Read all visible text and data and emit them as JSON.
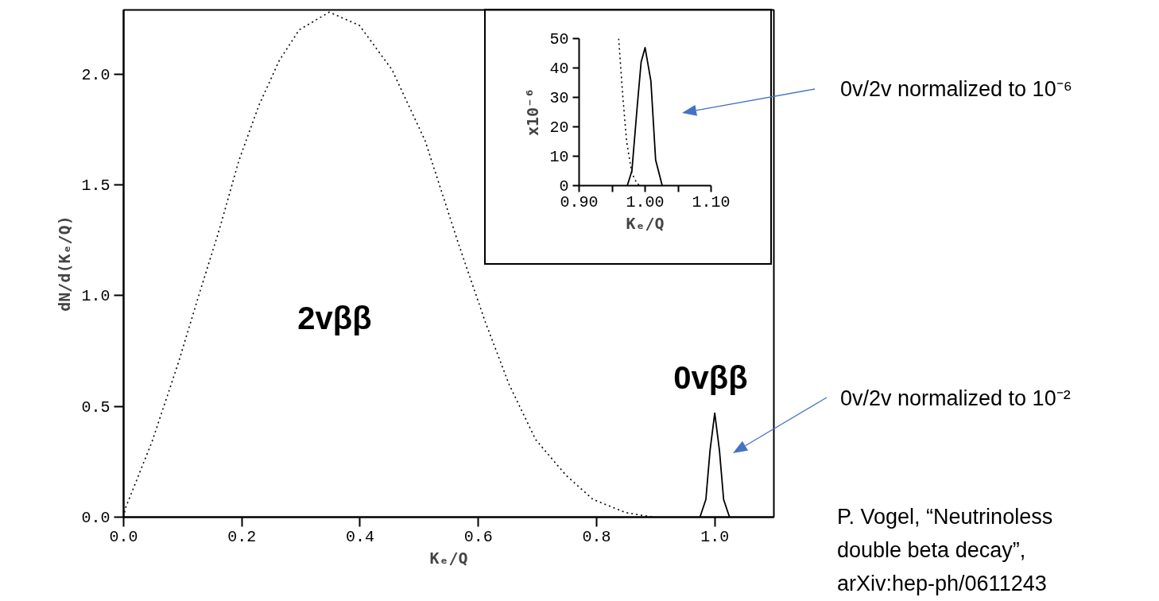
{
  "chart_data": [
    {
      "type": "line",
      "xlabel": "Kₑ/Q",
      "ylabel": "dN/d(Kₑ/Q)",
      "xlim": [
        0,
        1.1
      ],
      "ylim": [
        0,
        2.29
      ],
      "xticks": [
        {
          "value": 0,
          "label": "0.0"
        },
        {
          "value": 0.2,
          "label": "0.2"
        },
        {
          "value": 0.4,
          "label": "0.4"
        },
        {
          "value": 0.6,
          "label": "0.6"
        },
        {
          "value": 0.8,
          "label": "0.8"
        },
        {
          "value": 1.0,
          "label": "1.0"
        }
      ],
      "yticks": [
        {
          "value": 0,
          "label": "0.0"
        },
        {
          "value": 0.5,
          "label": "0.5"
        },
        {
          "value": 1.0,
          "label": "1.0"
        },
        {
          "value": 1.5,
          "label": "1.5"
        },
        {
          "value": 2.0,
          "label": "2.0"
        }
      ],
      "grid": false,
      "series": [
        {
          "color": "#000000",
          "line_style": "dotted",
          "x": [
            0,
            0.003,
            0.048,
            0.093,
            0.127,
            0.161,
            0.195,
            0.229,
            0.263,
            0.297,
            0.348,
            0.399,
            0.454,
            0.51,
            0.567,
            0.612,
            0.652,
            0.697,
            0.748,
            0.794,
            0.85,
            0.896
          ],
          "values": [
            0,
            0.04,
            0.34,
            0.7,
            1.0,
            1.29,
            1.61,
            1.86,
            2.06,
            2.2,
            2.28,
            2.22,
            2.02,
            1.7,
            1.23,
            0.88,
            0.6,
            0.35,
            0.19,
            0.08,
            0.02,
            0
          ]
        },
        {
          "color": "#000000",
          "line_style": "solid",
          "x": [
            0.975,
            0.985,
            0.992,
            1.0,
            1.008,
            1.015,
            1.025
          ],
          "values": [
            0,
            0.08,
            0.3,
            0.47,
            0.3,
            0.08,
            0
          ]
        }
      ],
      "annotations": [
        "2vββ",
        "0vββ",
        "0v/2v normalized to 10⁻⁶",
        "0v/2v normalized to 10⁻²",
        "P. Vogel, “Neutrinoless\ndouble beta decay”,\narXiv:hep-ph/0611243"
      ]
    },
    {
      "type": "line",
      "xlabel": "Kₑ/Q",
      "ylabel": "x10⁻⁶",
      "xlim": [
        0.9,
        1.1
      ],
      "ylim": [
        0,
        50
      ],
      "xticks": [
        {
          "value": 0.9,
          "label": "0.90"
        },
        {
          "value": 0.95,
          "label": null
        },
        {
          "value": 1.0,
          "label": "1.00"
        },
        {
          "value": 1.05,
          "label": null
        },
        {
          "value": 1.1,
          "label": "1.10"
        }
      ],
      "yticks": [
        0,
        10,
        20,
        30,
        40,
        50
      ],
      "grid": false,
      "series": [
        {
          "color": "#000000",
          "line_style": "dotted",
          "x": [
            0.96,
            0.966,
            0.972,
            0.98,
            0.988,
            0.994
          ],
          "values": [
            50,
            31,
            15,
            4.2,
            0.6,
            0
          ]
        },
        {
          "color": "#000000",
          "line_style": "solid",
          "x": [
            0.973,
            0.98,
            0.988,
            0.994,
            1.0,
            1.0088,
            1.016,
            1.026
          ],
          "values": [
            0,
            5,
            26.7,
            42,
            46.9,
            35.6,
            8.7,
            0
          ]
        }
      ]
    }
  ]
}
